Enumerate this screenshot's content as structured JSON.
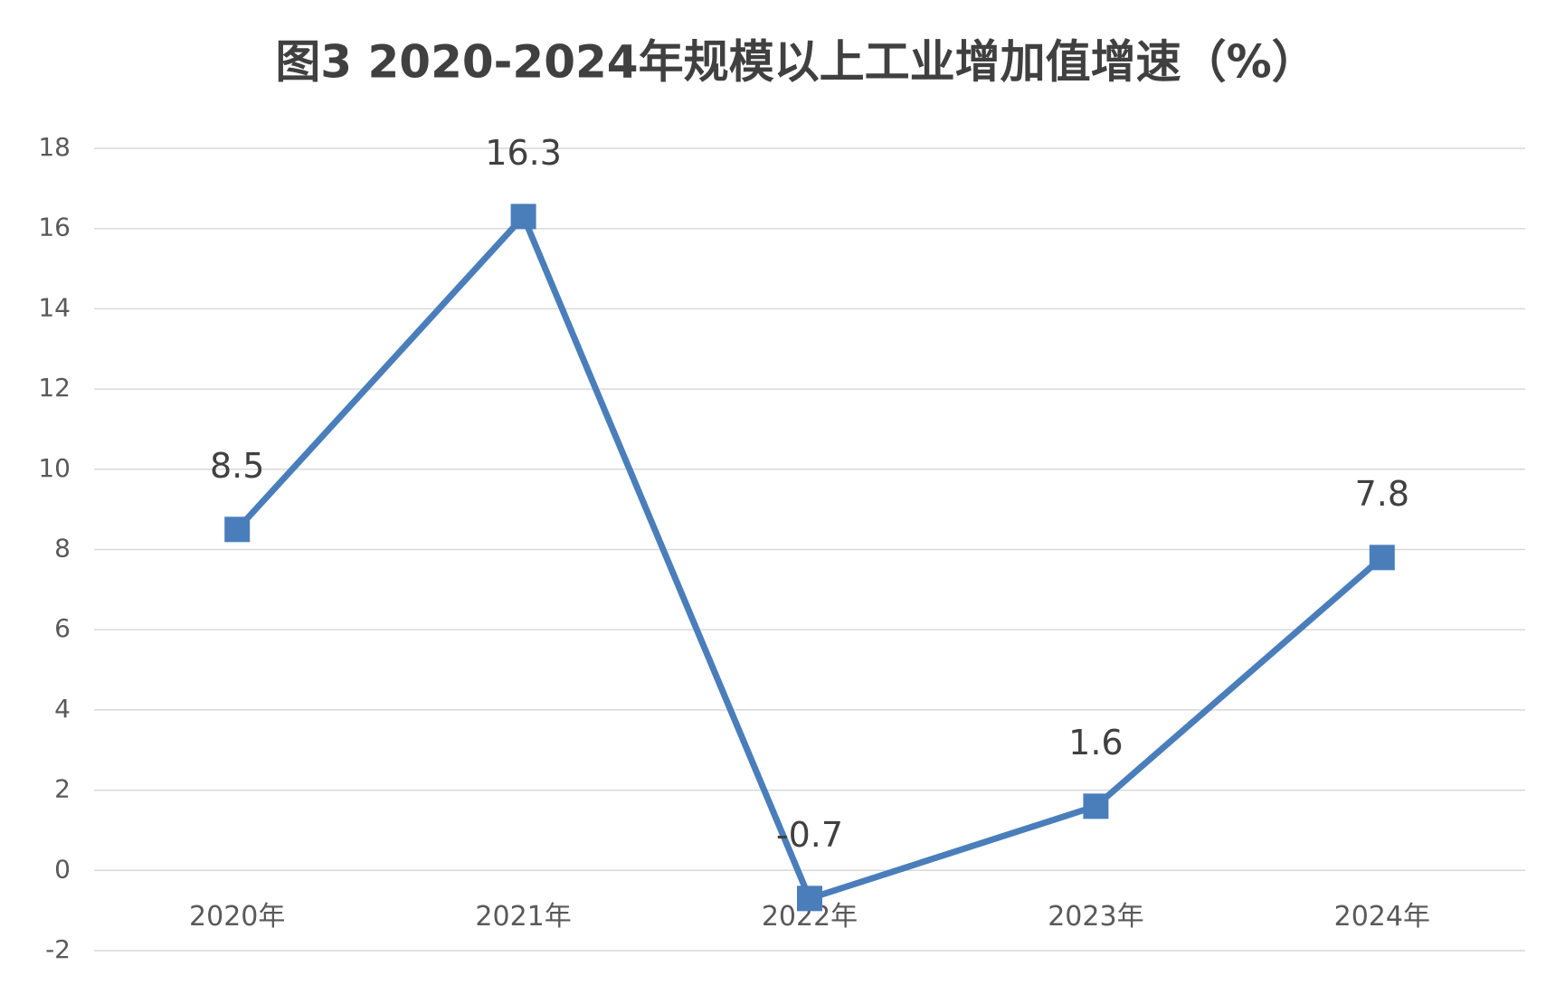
{
  "chart_data": {
    "type": "line",
    "title": "图3  2020-2024年规模以上工业增加值增速（%）",
    "categories": [
      "2020年",
      "2021年",
      "2022年",
      "2023年",
      "2024年"
    ],
    "series": [
      {
        "name": "规模以上工业增加值增速",
        "color": "#4a7ebb",
        "values": [
          8.5,
          16.3,
          -0.7,
          1.6,
          7.8
        ]
      }
    ],
    "ylim": [
      -2,
      18
    ],
    "yticks": [
      -2,
      0,
      2,
      4,
      6,
      8,
      10,
      12,
      14,
      16,
      18
    ],
    "grid": true
  }
}
